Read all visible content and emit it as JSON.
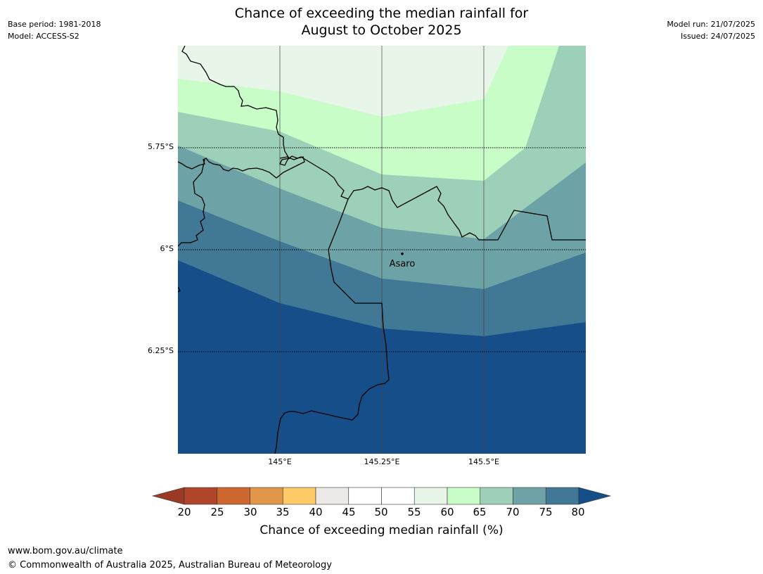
{
  "title_line1": "Chance of exceeding the median rainfall for",
  "title_line2": "August to October 2025",
  "base_period": "Base period: 1981-2018",
  "model": "Model: ACCESS-S2",
  "model_run": "Model run: 21/07/2025",
  "issued": "Issued: 24/07/2025",
  "map": {
    "latitude_labels": [
      "5.75°S",
      "6°S",
      "6.25°S"
    ],
    "longitude_labels": [
      "145°E",
      "145.25°E",
      "145.5°E"
    ],
    "place": {
      "name": "Asaro",
      "lon": 145.3,
      "lat": -6.01
    },
    "extent": {
      "lon_min": 144.75,
      "lon_max": 145.75,
      "lat_min": -6.5,
      "lat_max": -5.5
    },
    "band_colors": {
      "55-60": "#e8f5e9",
      "60-65": "#c8fdc8",
      "65-70": "#9dd0b8",
      "70-75": "#6da3a6",
      "75-80": "#417896",
      "80+": "#154e88"
    }
  },
  "colorbar": {
    "tick_labels": [
      "20",
      "25",
      "30",
      "35",
      "40",
      "45",
      "50",
      "55",
      "60",
      "65",
      "70",
      "75",
      "80"
    ],
    "colors": [
      "#b04529",
      "#cd662f",
      "#e2964a",
      "#fecb68",
      "#ede9e6",
      "#ffffff",
      "#ffffff",
      "#e8f5e9",
      "#c8fdc8",
      "#9dd0b8",
      "#6da3a6",
      "#417896"
    ],
    "under_color": "#9b3a24",
    "over_color": "#154e88",
    "label": "Chance of exceeding median rainfall (%)"
  },
  "footer_url": "www.bom.gov.au/climate",
  "footer_copyright": "© Commonwealth of Australia 2025, Australian Bureau of Meteorology"
}
